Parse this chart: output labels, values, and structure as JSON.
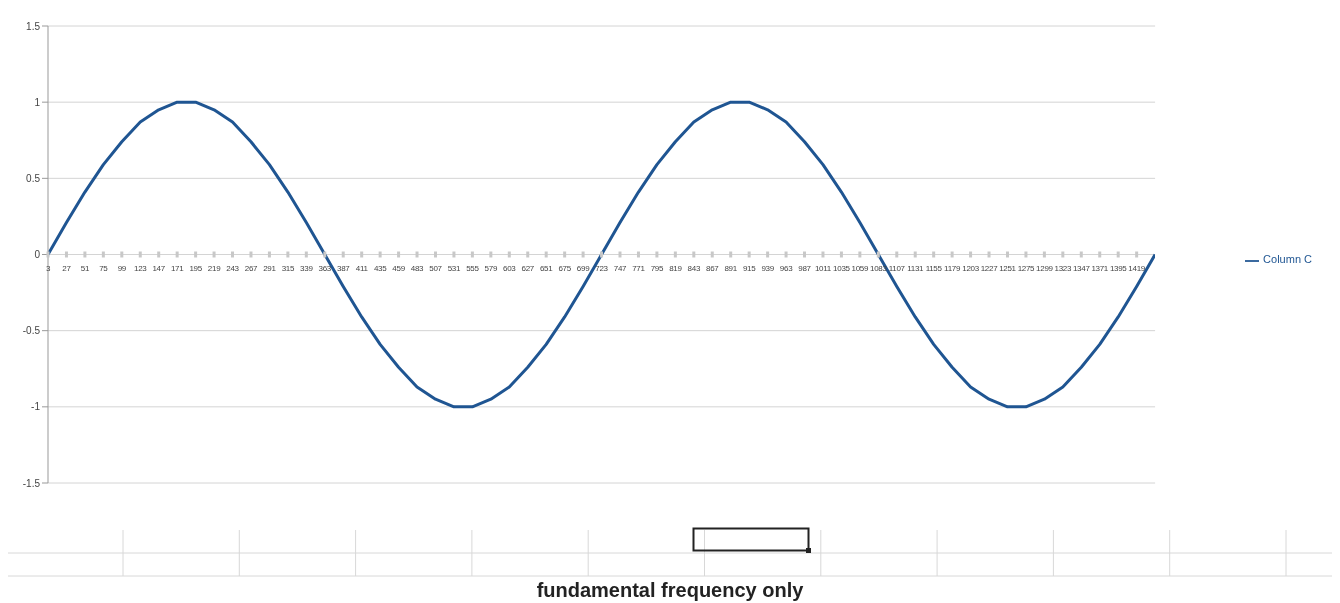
{
  "chart_data": {
    "type": "line",
    "x": [
      3,
      27,
      51,
      75,
      99,
      123,
      147,
      171,
      195,
      219,
      243,
      267,
      291,
      315,
      339,
      363,
      387,
      411,
      435,
      459,
      483,
      507,
      531,
      555,
      579,
      603,
      627,
      651,
      675,
      699,
      723,
      747,
      771,
      795,
      819,
      843,
      867,
      891,
      915,
      939,
      963,
      987,
      1011,
      1035,
      1059,
      1083,
      1107,
      1131,
      1155,
      1179,
      1203,
      1227,
      1251,
      1275,
      1299,
      1323,
      1347,
      1371,
      1395,
      1419,
      1443
    ],
    "series": [
      {
        "name": "Column C",
        "color": "#1f5592",
        "values": [
          0,
          0.21,
          0.41,
          0.59,
          0.74,
          0.87,
          0.95,
          1.0,
          1.0,
          0.95,
          0.87,
          0.74,
          0.59,
          0.41,
          0.21,
          0,
          -0.21,
          -0.41,
          -0.59,
          -0.74,
          -0.87,
          -0.95,
          -1.0,
          -1.0,
          -0.95,
          -0.87,
          -0.74,
          -0.59,
          -0.41,
          -0.21,
          0,
          0.21,
          0.41,
          0.59,
          0.74,
          0.87,
          0.95,
          1.0,
          1.0,
          0.95,
          0.87,
          0.74,
          0.59,
          0.41,
          0.21,
          0,
          -0.21,
          -0.41,
          -0.59,
          -0.74,
          -0.87,
          -0.95,
          -1.0,
          -1.0,
          -0.95,
          -0.87,
          -0.74,
          -0.59,
          -0.41,
          -0.21,
          0
        ]
      }
    ],
    "xlim": [
      3,
      1443
    ],
    "xticks": [
      3,
      27,
      51,
      75,
      99,
      123,
      147,
      171,
      195,
      219,
      243,
      267,
      291,
      315,
      339,
      363,
      387,
      411,
      435,
      459,
      483,
      507,
      531,
      555,
      579,
      603,
      627,
      651,
      675,
      699,
      723,
      747,
      771,
      795,
      819,
      843,
      867,
      891,
      915,
      939,
      963,
      987,
      1011,
      1035,
      1059,
      1083,
      1107,
      1131,
      1155,
      1179,
      1203,
      1227,
      1251,
      1275,
      1299,
      1323,
      1347,
      1371,
      1395,
      1419
    ],
    "ylim": [
      -1.5,
      1.5
    ],
    "yticks": [
      -1.5,
      -1,
      -0.5,
      0,
      0.5,
      1,
      1.5
    ],
    "grid": "y",
    "legend": "right",
    "marker": "none",
    "line_style": "solid",
    "annotations": [
      "fundamental frequency only"
    ]
  }
}
